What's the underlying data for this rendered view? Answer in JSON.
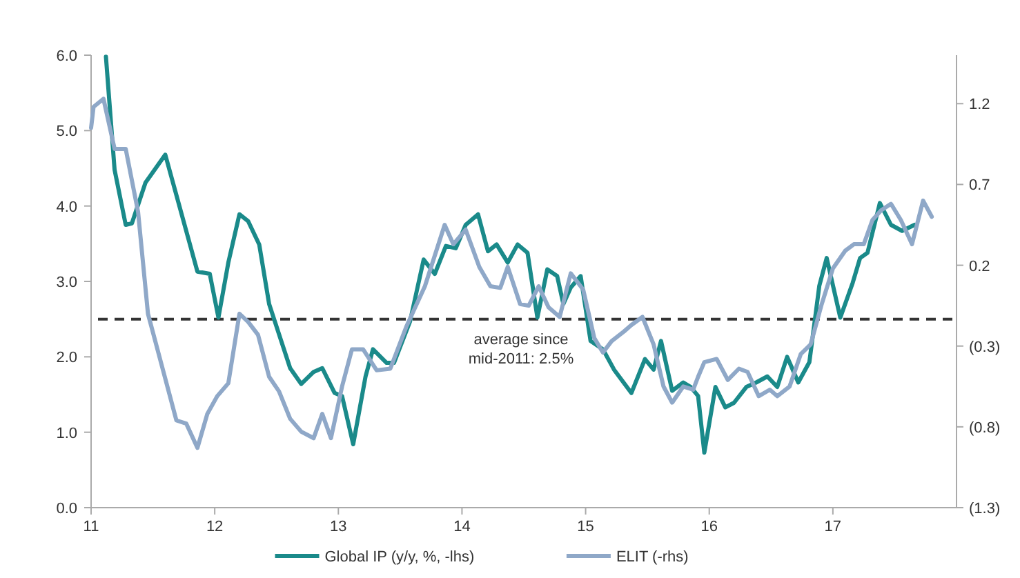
{
  "chart_data": {
    "type": "line",
    "xlim": [
      11,
      18
    ],
    "xticks": [
      11,
      12,
      13,
      14,
      15,
      16,
      17
    ],
    "ylim": [
      0,
      6
    ],
    "yticks": [
      {
        "value": 0,
        "label": "0.0"
      },
      {
        "value": 1,
        "label": "1.0"
      },
      {
        "value": 2,
        "label": "2.0"
      },
      {
        "value": 3,
        "label": "3.0"
      },
      {
        "value": 4,
        "label": "4.0"
      },
      {
        "value": 5,
        "label": "5.0"
      },
      {
        "value": 6,
        "label": "6.0"
      }
    ],
    "y2lim": [
      -1.3,
      1.5
    ],
    "y2ticks": [
      {
        "value": -1.3,
        "label": "(1.3)"
      },
      {
        "value": -0.8,
        "label": "(0.8)"
      },
      {
        "value": -0.3,
        "label": "(0.3)"
      },
      0.2,
      0.7,
      1.2
    ],
    "grid": false,
    "legend": "bottom",
    "line_style": "solid",
    "marker": "none",
    "ref_lines": [
      {
        "axis": "y",
        "value": 2.5,
        "label": "average since mid-2011: 2.5%",
        "color": "#333333",
        "line_style": "dashed"
      }
    ],
    "series": [
      {
        "name": "Global IP (y/y, %, -lhs)",
        "color": "#1a8a8a",
        "x": [
          11.12,
          11.19,
          11.28,
          11.33,
          11.44,
          11.6,
          11.86,
          11.96,
          12.03,
          12.11,
          12.2,
          12.27,
          12.36,
          12.44,
          12.61,
          12.7,
          12.8,
          12.87,
          12.97,
          13.03,
          13.12,
          13.22,
          13.28,
          13.39,
          13.45,
          13.58,
          13.69,
          13.78,
          13.87,
          13.95,
          14.03,
          14.13,
          14.21,
          14.28,
          14.37,
          14.45,
          14.53,
          14.61,
          14.69,
          14.77,
          14.82,
          14.88,
          14.96,
          15.04,
          15.14,
          15.23,
          15.37,
          15.48,
          15.55,
          15.61,
          15.7,
          15.79,
          15.85,
          15.91,
          15.96,
          16.05,
          16.13,
          16.2,
          16.3,
          16.38,
          16.47,
          16.55,
          16.63,
          16.72,
          16.81,
          16.89,
          16.95,
          17.06,
          17.16,
          17.22,
          17.28,
          17.38,
          17.47,
          17.56,
          17.66
        ],
        "values": [
          5.98,
          4.48,
          3.75,
          3.77,
          4.31,
          4.68,
          3.13,
          3.1,
          2.52,
          3.25,
          3.89,
          3.8,
          3.49,
          2.7,
          1.85,
          1.64,
          1.8,
          1.85,
          1.52,
          1.48,
          0.84,
          1.74,
          2.1,
          1.92,
          1.92,
          2.47,
          3.29,
          3.1,
          3.47,
          3.44,
          3.75,
          3.89,
          3.4,
          3.49,
          3.25,
          3.49,
          3.38,
          2.52,
          3.16,
          3.07,
          2.7,
          2.92,
          3.07,
          2.21,
          2.1,
          1.83,
          1.52,
          1.97,
          1.83,
          2.21,
          1.55,
          1.66,
          1.6,
          1.48,
          0.73,
          1.6,
          1.33,
          1.39,
          1.6,
          1.66,
          1.74,
          1.6,
          2.0,
          1.66,
          1.93,
          2.94,
          3.31,
          2.52,
          2.98,
          3.31,
          3.38,
          4.04,
          3.75,
          3.67,
          3.75
        ]
      },
      {
        "name": "ELIT (-rhs)",
        "color": "#8fa8c8",
        "axis": "y2",
        "x": [
          11.0,
          11.02,
          11.1,
          11.19,
          11.28,
          11.38,
          11.46,
          11.69,
          11.77,
          11.86,
          11.94,
          12.02,
          12.11,
          12.2,
          12.27,
          12.35,
          12.44,
          12.52,
          12.61,
          12.7,
          12.8,
          12.87,
          12.94,
          13.03,
          13.11,
          13.2,
          13.31,
          13.42,
          13.55,
          13.7,
          13.86,
          13.93,
          14.03,
          14.14,
          14.23,
          14.31,
          14.37,
          14.47,
          14.54,
          14.62,
          14.7,
          14.79,
          14.88,
          14.98,
          15.07,
          15.14,
          15.21,
          15.31,
          15.37,
          15.46,
          15.55,
          15.63,
          15.7,
          15.79,
          15.87,
          15.91,
          15.96,
          16.06,
          16.15,
          16.24,
          16.31,
          16.4,
          16.49,
          16.55,
          16.65,
          16.74,
          16.82,
          16.91,
          17.0,
          17.1,
          17.17,
          17.25,
          17.32,
          17.39,
          17.47,
          17.55,
          17.64,
          17.73,
          17.8
        ],
        "values": [
          1.05,
          1.18,
          1.23,
          0.92,
          0.92,
          0.53,
          -0.1,
          -0.76,
          -0.78,
          -0.93,
          -0.72,
          -0.61,
          -0.53,
          -0.1,
          -0.15,
          -0.23,
          -0.49,
          -0.58,
          -0.75,
          -0.83,
          -0.87,
          -0.72,
          -0.87,
          -0.55,
          -0.32,
          -0.32,
          -0.45,
          -0.44,
          -0.18,
          0.07,
          0.45,
          0.33,
          0.42,
          0.19,
          0.07,
          0.06,
          0.19,
          -0.04,
          -0.05,
          0.07,
          -0.06,
          -0.12,
          0.15,
          0.05,
          -0.25,
          -0.34,
          -0.27,
          -0.21,
          -0.17,
          -0.12,
          -0.29,
          -0.55,
          -0.65,
          -0.55,
          -0.57,
          -0.49,
          -0.4,
          -0.38,
          -0.51,
          -0.44,
          -0.46,
          -0.61,
          -0.57,
          -0.61,
          -0.55,
          -0.35,
          -0.29,
          -0.04,
          0.18,
          0.29,
          0.33,
          0.33,
          0.48,
          0.54,
          0.58,
          0.48,
          0.33,
          0.6,
          0.5
        ]
      }
    ]
  }
}
